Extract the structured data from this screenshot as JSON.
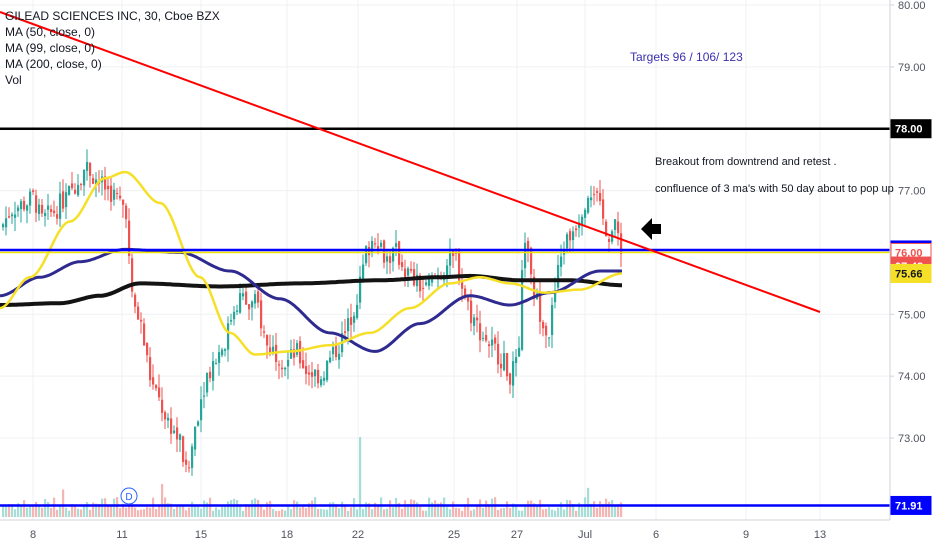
{
  "legend": {
    "symbol": "GILEAD SCIENCES INC, 30, Cboe BZX",
    "ma1": "MA (50, close, 0)",
    "ma2": "MA (99, close, 0)",
    "ma3": "MA (200, close, 0)",
    "vol": "Vol"
  },
  "annotations": {
    "targets": "Targets 96 / 106/ 123",
    "breakout": "Breakout from downtrend and retest .",
    "confluence": "confluence of 3 ma's with 50 day about to pop up"
  },
  "colors": {
    "up": "#26a69a",
    "down": "#ef5350",
    "trendline": "#ff0000",
    "ma50": "#f5e027",
    "ma99": "#2e2a8f",
    "ma200": "#131313",
    "blue_level": "#0000ff",
    "yellow_level": "#f2e600",
    "black_level": "#000000"
  },
  "chart_data": {
    "type": "candlestick",
    "y_axis": {
      "range": [
        72.2,
        80.05
      ],
      "ticks": [
        "80.00",
        "79.00",
        "78.00",
        "77.00",
        "76.00",
        "75.00",
        "74.00",
        "73.00"
      ],
      "tick_values": [
        80,
        79,
        78,
        77,
        76,
        75,
        74,
        73
      ]
    },
    "x_axis": {
      "range_days": [
        7.6,
        14.4
      ],
      "ticks": [
        "8",
        "11",
        "15",
        "18",
        "22",
        "25",
        "27",
        "Jul",
        "6",
        "9",
        "13"
      ]
    },
    "price_labels": [
      {
        "text": "78.00",
        "value": 78.0,
        "bg": "#000000",
        "fg": "#ffffff"
      },
      {
        "text": "76.04",
        "value": 76.04,
        "bg": "#0000ff",
        "fg": "#ffffff"
      },
      {
        "text": "76.00",
        "value": 76.0,
        "bg": "#ffffff",
        "fg": "#ef5350",
        "border": "#ef5350"
      },
      {
        "text": "07:48",
        "value": 75.78,
        "bg": "#ef5350",
        "fg": "#ffffff"
      },
      {
        "text": "75.66",
        "value": 75.66,
        "bg": "#f5e027",
        "fg": "#131722"
      },
      {
        "text": "71.91",
        "value": 71.91,
        "bg": "#0000ff",
        "fg": "#ffffff"
      }
    ],
    "horizontal_levels": [
      {
        "name": "resistance-78",
        "value": 78.0,
        "color": "#000000"
      },
      {
        "name": "support-76.04",
        "value": 76.04,
        "color": "#0000ff"
      },
      {
        "name": "level-76.00",
        "value": 76.0,
        "color": "#f2e600"
      },
      {
        "name": "support-71.91",
        "value": 71.91,
        "color": "#0000ff"
      }
    ],
    "dividend_marker": "D",
    "current_price": 76.0,
    "last_close_ma_values": {
      "ma50": 75.66,
      "ma99": 75.7,
      "ma200": 75.47
    }
  }
}
